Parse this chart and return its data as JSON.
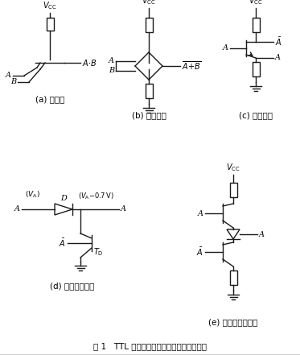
{
  "title": "图 1   TTL 集成门电路中的几种基本功能结构",
  "sub_a": "(a) 与结构",
  "sub_b": "(b) 或非结构",
  "sub_c": "(c) 倒相结构",
  "sub_d": "(d) 电平偏移结构",
  "sub_e": "(e) 推拉式输出结构",
  "bg_color": "#ffffff",
  "line_color": "#1a1a1a",
  "lw": 1.0
}
